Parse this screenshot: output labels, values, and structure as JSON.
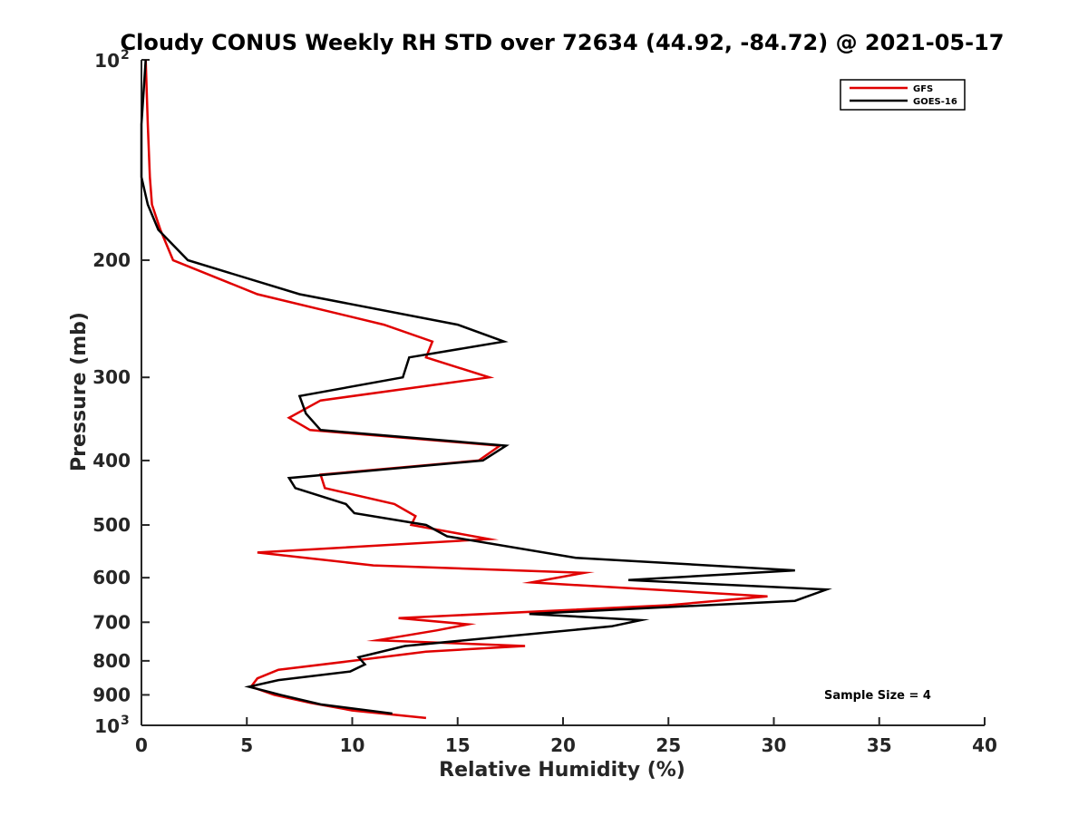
{
  "chart_data": {
    "type": "line",
    "title": "Cloudy CONUS Weekly RH STD over 72634 (44.92, -84.72) @ 2021-05-17",
    "xlabel": "Relative Humidity (%)",
    "ylabel": "Pressure (mb)",
    "xlim": [
      0,
      40
    ],
    "ylim": [
      100,
      1000
    ],
    "yscale": "log",
    "y_reversed": true,
    "x_ticks": [
      "0",
      "5",
      "10",
      "15",
      "20",
      "25",
      "30",
      "35",
      "40"
    ],
    "y_ticks": [
      {
        "value": 100,
        "label": "10",
        "exp": "2"
      },
      {
        "value": 200,
        "label": "200"
      },
      {
        "value": 300,
        "label": "300"
      },
      {
        "value": 400,
        "label": "400"
      },
      {
        "value": 500,
        "label": "500"
      },
      {
        "value": 600,
        "label": "600"
      },
      {
        "value": 700,
        "label": "700"
      },
      {
        "value": 800,
        "label": "800"
      },
      {
        "value": 900,
        "label": "900"
      },
      {
        "value": 1000,
        "label": "10",
        "exp": "3"
      }
    ],
    "grid": false,
    "legend_position": "top-right",
    "annotation": "Sample Size = 4",
    "series": [
      {
        "name": "GFS",
        "color": "#e00000",
        "points": [
          [
            0.2,
            100
          ],
          [
            0.3,
            125
          ],
          [
            0.4,
            150
          ],
          [
            0.5,
            165
          ],
          [
            0.9,
            180
          ],
          [
            1.5,
            200
          ],
          [
            5.5,
            225
          ],
          [
            11.5,
            250
          ],
          [
            13.8,
            265
          ],
          [
            13.5,
            280
          ],
          [
            16.5,
            300
          ],
          [
            8.5,
            325
          ],
          [
            7.0,
            345
          ],
          [
            8.0,
            360
          ],
          [
            17.0,
            380
          ],
          [
            16.0,
            400
          ],
          [
            8.5,
            420
          ],
          [
            8.7,
            440
          ],
          [
            12.0,
            465
          ],
          [
            13.0,
            485
          ],
          [
            12.8,
            500
          ],
          [
            16.5,
            525
          ],
          [
            5.5,
            550
          ],
          [
            11.0,
            575
          ],
          [
            21.0,
            590
          ],
          [
            18.5,
            610
          ],
          [
            29.7,
            640
          ],
          [
            25.0,
            660
          ],
          [
            12.2,
            690
          ],
          [
            15.5,
            705
          ],
          [
            14.0,
            720
          ],
          [
            11.2,
            745
          ],
          [
            18.2,
            760
          ],
          [
            13.5,
            775
          ],
          [
            10.0,
            800
          ],
          [
            6.5,
            825
          ],
          [
            5.5,
            850
          ],
          [
            5.2,
            875
          ],
          [
            6.3,
            900
          ],
          [
            8.0,
            925
          ],
          [
            10.0,
            950
          ],
          [
            13.5,
            975
          ]
        ]
      },
      {
        "name": "GOES-16",
        "color": "#000000",
        "points": [
          [
            0.2,
            100
          ],
          [
            0.0,
            125
          ],
          [
            0.0,
            150
          ],
          [
            0.3,
            165
          ],
          [
            0.8,
            180
          ],
          [
            2.2,
            200
          ],
          [
            7.5,
            225
          ],
          [
            15.0,
            250
          ],
          [
            17.2,
            265
          ],
          [
            12.7,
            280
          ],
          [
            12.4,
            300
          ],
          [
            7.5,
            320
          ],
          [
            7.8,
            340
          ],
          [
            8.5,
            360
          ],
          [
            17.3,
            380
          ],
          [
            16.2,
            400
          ],
          [
            7.0,
            425
          ],
          [
            7.3,
            440
          ],
          [
            9.7,
            465
          ],
          [
            10.1,
            480
          ],
          [
            13.5,
            500
          ],
          [
            14.5,
            520
          ],
          [
            20.6,
            560
          ],
          [
            31.0,
            585
          ],
          [
            23.1,
            605
          ],
          [
            32.5,
            625
          ],
          [
            31.0,
            650
          ],
          [
            18.4,
            680
          ],
          [
            23.7,
            695
          ],
          [
            22.3,
            710
          ],
          [
            12.5,
            760
          ],
          [
            10.3,
            790
          ],
          [
            10.6,
            810
          ],
          [
            9.9,
            830
          ],
          [
            6.5,
            855
          ],
          [
            5.1,
            875
          ],
          [
            6.6,
            900
          ],
          [
            8.5,
            930
          ],
          [
            11.9,
            960
          ]
        ]
      }
    ]
  }
}
